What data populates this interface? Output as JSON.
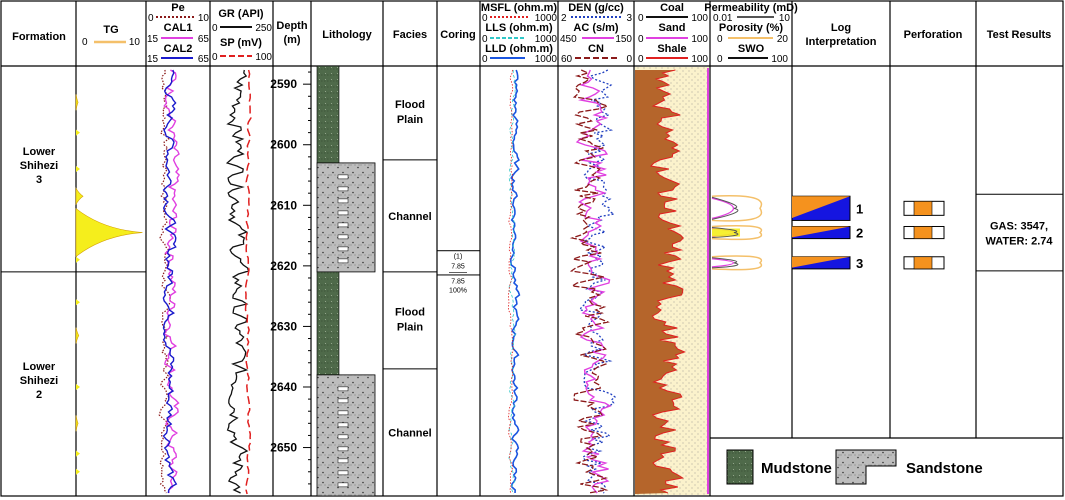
{
  "chart_data": {
    "type": "well-log",
    "depth": {
      "label": "Depth (m)",
      "range": [
        2587,
        2658
      ],
      "ticks": [
        2590,
        2600,
        2610,
        2620,
        2630,
        2640,
        2650
      ]
    },
    "headers": {
      "formation": "Formation",
      "tg": "TG",
      "tg_min": "0",
      "tg_max": "10",
      "pe": "Pe",
      "pe_min": "0",
      "pe_max": "10",
      "cal1": "CAL1",
      "cal1_min": "15",
      "cal1_max": "65",
      "cal2": "CAL2",
      "cal2_min": "15",
      "cal2_max": "65",
      "gr": "GR (API)",
      "gr_min": "0",
      "gr_max": "250",
      "sp": "SP (mV)",
      "sp_min": "0",
      "sp_max": "100",
      "depth_1": "Depth",
      "depth_2": "(m)",
      "lithology": "Lithology",
      "facies": "Facies",
      "coring": "Coring",
      "msfl": "MSFL (ohm.m)",
      "msfl_min": "0",
      "msfl_max": "1000",
      "lls": "LLS (ohm.m)",
      "lls_min": "0",
      "lls_max": "1000",
      "lld": "LLD (ohm.m)",
      "lld_min": "0",
      "lld_max": "1000",
      "den": "DEN (g/cc)",
      "den_min": "2",
      "den_max": "3",
      "ac": "AC (s/m)",
      "ac_min": "450",
      "ac_max": "150",
      "cn": "CN",
      "cn_min": "60",
      "cn_max": "0",
      "coal": "Coal",
      "coal_min": "0",
      "coal_max": "100",
      "sand": "Sand",
      "sand_min": "0",
      "sand_max": "100",
      "shale": "Shale",
      "shale_min": "0",
      "shale_max": "100",
      "perm": "Permeability (mD)",
      "perm_min": "0.01",
      "perm_max": "10",
      "por": "Porosity (%)",
      "por_min": "0",
      "por_max": "20",
      "swo": "SWO",
      "swo_min": "0",
      "swo_max": "100",
      "interp_1": "Log",
      "interp_2": "Interpretation",
      "perforation": "Perforation",
      "test": "Test Results"
    },
    "formations": [
      {
        "l1": "Lower",
        "l2": "Shihezi",
        "l3": "3",
        "top": 2587,
        "bottom": 2621
      },
      {
        "l1": "Lower",
        "l2": "Shihezi",
        "l3": "2",
        "top": 2621,
        "bottom": 2658
      }
    ],
    "lithology": [
      {
        "type": "mudstone",
        "top": 2587,
        "bottom": 2603
      },
      {
        "type": "sandstone",
        "top": 2603,
        "bottom": 2621
      },
      {
        "type": "mudstone",
        "top": 2621,
        "bottom": 2638
      },
      {
        "type": "sandstone",
        "top": 2638,
        "bottom": 2658
      }
    ],
    "facies": [
      {
        "l1": "Flood",
        "l2": "Plain",
        "top": 2587,
        "bottom": 2602.5
      },
      {
        "l1": "Channel",
        "l2": "",
        "top": 2602.5,
        "bottom": 2621
      },
      {
        "l1": "Flood",
        "l2": "Plain",
        "top": 2621,
        "bottom": 2637
      },
      {
        "l1": "Channel",
        "l2": "",
        "top": 2637,
        "bottom": 2658
      }
    ],
    "coring": {
      "top": 2617.5,
      "bottom": 2621.5,
      "lines": [
        "(1)",
        "7.85",
        "7.85",
        "100%"
      ]
    },
    "tg_peaks": [
      {
        "depth": 2614.5,
        "value": 9.5
      },
      {
        "depth": 2608.5,
        "value": 1.0
      },
      {
        "depth": 2631.5,
        "value": 0.4
      },
      {
        "depth": 2593,
        "value": 0.3
      },
      {
        "depth": 2646,
        "value": 0.3
      }
    ],
    "zones": [
      {
        "id": "1",
        "top": 2608.5,
        "bottom": 2612.5
      },
      {
        "id": "2",
        "top": 2613.5,
        "bottom": 2615.5
      },
      {
        "id": "3",
        "top": 2618.5,
        "bottom": 2620.5
      }
    ],
    "test_result": {
      "line1": "GAS: 3547,",
      "line2": "WATER: 2.74"
    },
    "legend": {
      "mudstone": "Mudstone",
      "sandstone": "Sandstone"
    },
    "colors": {
      "tg": "#f4c06a",
      "tg_fill": "#f5ee1c",
      "pe": "#8b1a1a",
      "cal1": "#e040e0",
      "cal2": "#1a1acc",
      "gr": "#111111",
      "sp": "#e02020",
      "msfl": "#e02020",
      "lls": "#30c8c8",
      "lld": "#1a55e0",
      "den": "#2040c0",
      "ac": "#e040e0",
      "cn": "#8b1a1a",
      "coal": "#111111",
      "sand": "#e040e0",
      "shale": "#e02020",
      "shale_fill": "#b5652b",
      "sand_fill": "#fbf2cc",
      "perm": "#555555",
      "por": "#f4c06a",
      "swo": "#111111",
      "mud_fill": "#4f6a4a",
      "sand_lith": "#bdbdbd",
      "perf": "#f5921e",
      "interp": "#1515e0"
    }
  }
}
